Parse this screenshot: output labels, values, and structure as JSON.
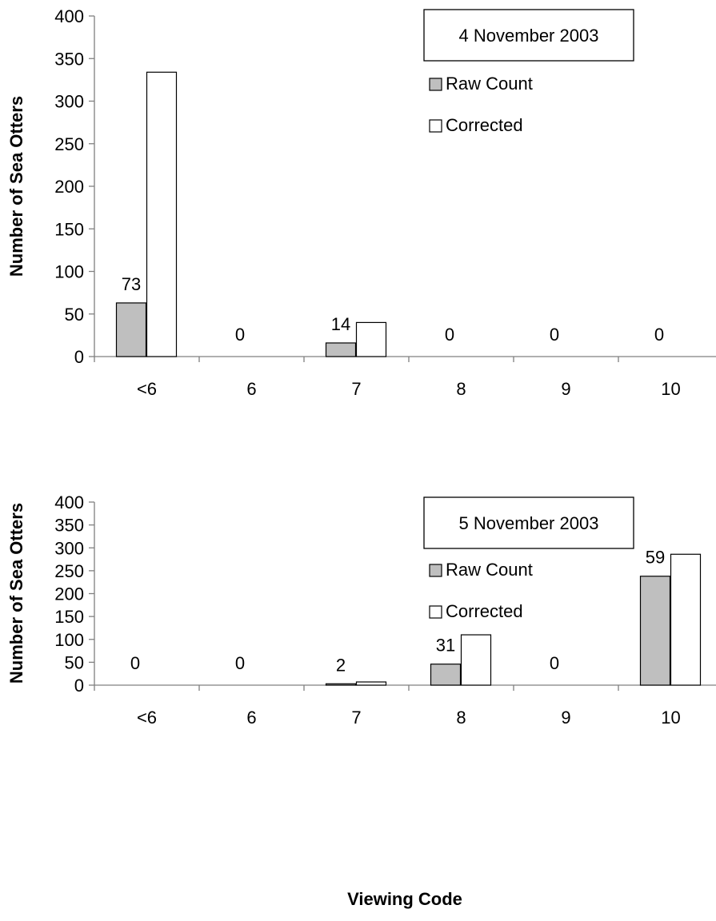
{
  "chart_data": [
    {
      "type": "bar",
      "title": "4 November 2003",
      "ylabel": "Number of Sea Otters",
      "xlabel": "",
      "ylim": [
        0,
        400
      ],
      "yticks": [
        "0",
        "50",
        "100",
        "150",
        "200",
        "250",
        "300",
        "350",
        "400"
      ],
      "categories": [
        "<6",
        "6",
        "7",
        "8",
        "9",
        "10"
      ],
      "series": [
        {
          "name": "Raw Count",
          "color": "#bfbfbf",
          "values": [
            63,
            0,
            16,
            0,
            0,
            0
          ]
        },
        {
          "name": "Corrected",
          "color": "#ffffff",
          "values": [
            334,
            0,
            40,
            0,
            0,
            0
          ]
        }
      ],
      "data_labels": [
        "73",
        "0",
        "14",
        "0",
        "0",
        "0"
      ],
      "legend_position": "top-right",
      "grid": false
    },
    {
      "type": "bar",
      "title": "5 November 2003",
      "ylabel": "Number of Sea Otters",
      "xlabel": "Viewing Code",
      "ylim": [
        0,
        400
      ],
      "yticks": [
        "0",
        "50",
        "100",
        "150",
        "200",
        "250",
        "300",
        "350",
        "400"
      ],
      "categories": [
        "<6",
        "6",
        "7",
        "8",
        "9",
        "10"
      ],
      "series": [
        {
          "name": "Raw Count",
          "color": "#bfbfbf",
          "values": [
            0,
            0,
            3,
            46,
            0,
            238
          ]
        },
        {
          "name": "Corrected",
          "color": "#ffffff",
          "values": [
            0,
            0,
            7,
            110,
            0,
            286
          ]
        }
      ],
      "data_labels": [
        "0",
        "0",
        "2",
        "31",
        "0",
        "59"
      ],
      "legend_position": "top-right",
      "grid": false
    }
  ]
}
